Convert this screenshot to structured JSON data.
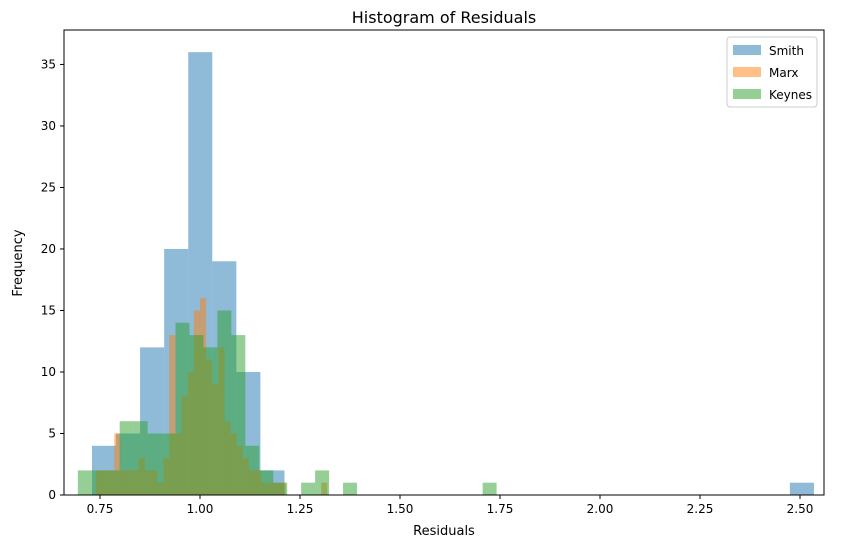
{
  "chart_data": {
    "type": "bar",
    "subtype": "histogram",
    "title": "Histogram of Residuals",
    "xlabel": "Residuals",
    "ylabel": "Frequency",
    "xlim": [
      0.66,
      2.56
    ],
    "ylim": [
      0,
      37.8
    ],
    "xticks": [
      0.75,
      1.0,
      1.25,
      1.5,
      1.75,
      2.0,
      2.25,
      2.5
    ],
    "xtick_labels": [
      "0.75",
      "1.00",
      "1.25",
      "1.50",
      "1.75",
      "2.00",
      "2.25",
      "2.50"
    ],
    "yticks": [
      0,
      5,
      10,
      15,
      20,
      25,
      30,
      35
    ],
    "ytick_labels": [
      "0",
      "5",
      "10",
      "15",
      "20",
      "25",
      "30",
      "35"
    ],
    "grid": false,
    "legend_position": "top-right",
    "alpha": 0.5,
    "series": [
      {
        "name": "Smith",
        "color": "#1f77b4",
        "bins": [
          {
            "x0": 0.7299,
            "x1": 0.7901,
            "count": 4
          },
          {
            "x0": 0.7901,
            "x1": 0.8502,
            "count": 5
          },
          {
            "x0": 0.8502,
            "x1": 0.9104,
            "count": 12
          },
          {
            "x0": 0.9104,
            "x1": 0.9706,
            "count": 20
          },
          {
            "x0": 0.9706,
            "x1": 1.0307,
            "count": 36
          },
          {
            "x0": 1.0307,
            "x1": 1.0909,
            "count": 19
          },
          {
            "x0": 1.0909,
            "x1": 1.151,
            "count": 10
          },
          {
            "x0": 1.151,
            "x1": 1.2112,
            "count": 2
          },
          {
            "x0": 2.4747,
            "x1": 2.5349,
            "count": 1
          }
        ]
      },
      {
        "name": "Marx",
        "color": "#ff7f0e",
        "bins": [
          {
            "x0": 0.7398,
            "x1": 0.7551,
            "count": 2
          },
          {
            "x0": 0.7551,
            "x1": 0.7704,
            "count": 2
          },
          {
            "x0": 0.7704,
            "x1": 0.7857,
            "count": 2
          },
          {
            "x0": 0.7857,
            "x1": 0.801,
            "count": 5
          },
          {
            "x0": 0.801,
            "x1": 0.8163,
            "count": 2
          },
          {
            "x0": 0.8163,
            "x1": 0.8316,
            "count": 2
          },
          {
            "x0": 0.8316,
            "x1": 0.8469,
            "count": 2
          },
          {
            "x0": 0.8469,
            "x1": 0.8622,
            "count": 3
          },
          {
            "x0": 0.8622,
            "x1": 0.8775,
            "count": 2
          },
          {
            "x0": 0.8775,
            "x1": 0.8928,
            "count": 2
          },
          {
            "x0": 0.8928,
            "x1": 0.9081,
            "count": 1
          },
          {
            "x0": 0.9081,
            "x1": 0.9234,
            "count": 3
          },
          {
            "x0": 0.9234,
            "x1": 0.9387,
            "count": 13
          },
          {
            "x0": 0.9387,
            "x1": 0.954,
            "count": 5
          },
          {
            "x0": 0.954,
            "x1": 0.9693,
            "count": 8
          },
          {
            "x0": 0.9693,
            "x1": 0.9846,
            "count": 10
          },
          {
            "x0": 0.9846,
            "x1": 0.9999,
            "count": 15
          },
          {
            "x0": 0.9999,
            "x1": 1.0152,
            "count": 16
          },
          {
            "x0": 1.0152,
            "x1": 1.0305,
            "count": 11
          },
          {
            "x0": 1.0305,
            "x1": 1.0458,
            "count": 9
          },
          {
            "x0": 1.0458,
            "x1": 1.0611,
            "count": 12
          },
          {
            "x0": 1.0611,
            "x1": 1.0764,
            "count": 6
          },
          {
            "x0": 1.0764,
            "x1": 1.0917,
            "count": 5
          },
          {
            "x0": 1.0917,
            "x1": 1.107,
            "count": 4
          },
          {
            "x0": 1.107,
            "x1": 1.1223,
            "count": 3
          },
          {
            "x0": 1.1223,
            "x1": 1.1376,
            "count": 2
          },
          {
            "x0": 1.1376,
            "x1": 1.1529,
            "count": 2
          },
          {
            "x0": 1.1529,
            "x1": 1.1682,
            "count": 1
          },
          {
            "x0": 1.1682,
            "x1": 1.1835,
            "count": 1
          },
          {
            "x0": 1.1835,
            "x1": 1.1988,
            "count": 1
          },
          {
            "x0": 1.1988,
            "x1": 1.2141,
            "count": 1
          },
          {
            "x0": 1.303,
            "x1": 1.3183,
            "count": 1
          }
        ]
      },
      {
        "name": "Keynes",
        "color": "#2ca02c",
        "bins": [
          {
            "x0": 0.6945,
            "x1": 0.7294,
            "count": 2
          },
          {
            "x0": 0.7294,
            "x1": 0.7643,
            "count": 2
          },
          {
            "x0": 0.7643,
            "x1": 0.7992,
            "count": 2
          },
          {
            "x0": 0.7992,
            "x1": 0.8341,
            "count": 6
          },
          {
            "x0": 0.8341,
            "x1": 0.869,
            "count": 6
          },
          {
            "x0": 0.869,
            "x1": 0.9039,
            "count": 5
          },
          {
            "x0": 0.9039,
            "x1": 0.9388,
            "count": 5
          },
          {
            "x0": 0.9388,
            "x1": 0.9737,
            "count": 14
          },
          {
            "x0": 0.9737,
            "x1": 1.0086,
            "count": 13
          },
          {
            "x0": 1.0086,
            "x1": 1.0435,
            "count": 12
          },
          {
            "x0": 1.0435,
            "x1": 1.0784,
            "count": 15
          },
          {
            "x0": 1.0784,
            "x1": 1.1133,
            "count": 13
          },
          {
            "x0": 1.1133,
            "x1": 1.1482,
            "count": 4
          },
          {
            "x0": 1.1482,
            "x1": 1.1831,
            "count": 2
          },
          {
            "x0": 1.1831,
            "x1": 1.218,
            "count": 1
          },
          {
            "x0": 1.2529,
            "x1": 1.2878,
            "count": 1
          },
          {
            "x0": 1.2878,
            "x1": 1.3227,
            "count": 2
          },
          {
            "x0": 1.3576,
            "x1": 1.3925,
            "count": 1
          },
          {
            "x0": 1.7066,
            "x1": 1.7415,
            "count": 1
          }
        ]
      }
    ]
  }
}
